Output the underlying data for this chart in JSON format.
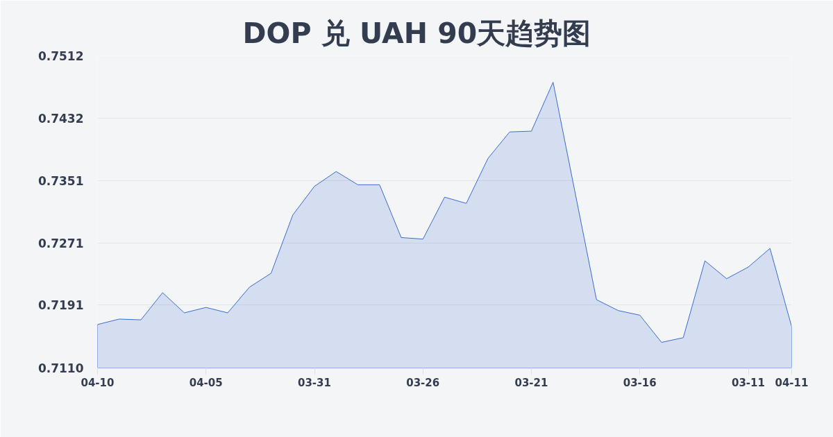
{
  "chart_data": {
    "type": "area",
    "title": "DOP 兑 UAH 90天趋势图",
    "categories": [
      "04-10",
      null,
      null,
      null,
      null,
      "04-05",
      null,
      null,
      null,
      null,
      "03-31",
      null,
      null,
      null,
      null,
      "03-26",
      null,
      null,
      null,
      null,
      "03-21",
      null,
      null,
      null,
      null,
      "03-16",
      null,
      null,
      null,
      null,
      "03-11",
      null,
      "04-11"
    ],
    "series": [
      {
        "color": "#3a6bd0",
        "values": [
          0.7166,
          0.7173,
          0.7172,
          0.7207,
          0.7181,
          0.7188,
          0.7181,
          0.7214,
          0.7232,
          0.7307,
          0.7344,
          0.7363,
          0.7346,
          0.7346,
          0.7278,
          0.7276,
          0.733,
          0.7322,
          0.738,
          0.7414,
          0.7415,
          0.7478,
          0.7338,
          0.7198,
          0.7184,
          0.7178,
          0.7143,
          0.7149,
          0.7248,
          0.7225,
          0.724,
          0.7264,
          0.7163
        ]
      }
    ],
    "ylim": [
      0.711,
      0.7512
    ],
    "yticks": [
      {
        "value": 0.711,
        "label": "0.7110"
      },
      0.7191,
      0.7271,
      0.7351,
      0.7432,
      0.7512
    ],
    "grid": "y"
  }
}
